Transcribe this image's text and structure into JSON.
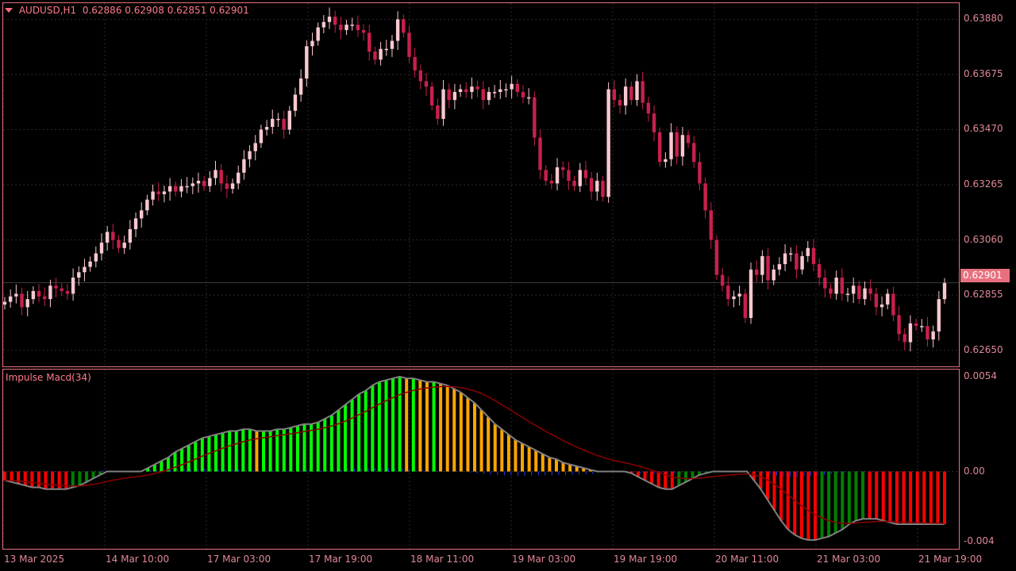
{
  "header": {
    "symbol_label": "AUDUSD,H1",
    "ohlc": "0.62886 0.62908 0.62851 0.62901"
  },
  "indicator": {
    "name": "Impulse Macd(34)"
  },
  "current_price": "0.62901",
  "price_axis": [
    "0.63880",
    "0.63675",
    "0.63470",
    "0.63265",
    "0.63060",
    "0.62855",
    "0.62650"
  ],
  "indicator_axis": [
    "0.0054",
    "0.00",
    "-0.004"
  ],
  "time_axis": [
    "13 Mar 2025",
    "14 Mar 10:00",
    "17 Mar 03:00",
    "17 Mar 19:00",
    "18 Mar 11:00",
    "19 Mar 03:00",
    "19 Mar 19:00",
    "20 Mar 11:00",
    "21 Mar 03:00",
    "21 Mar 19:00"
  ],
  "colors": {
    "background": "#000000",
    "frame": "#e8707e",
    "bull_candle": "#f8c8d0",
    "bear_candle": "#c8204c",
    "grid": "#2a2a2a",
    "impulse_green": "#00ff00",
    "impulse_dark_green": "#008000",
    "impulse_orange": "#ffa500",
    "impulse_red": "#ff0000",
    "signal_line": "#8b0000",
    "macd_line": "#808080",
    "blue_hist": "#1e3cff"
  },
  "chart_data": [
    {
      "type": "candlestick",
      "title": "AUDUSD,H1",
      "ylim": [
        0.6259,
        0.6394
      ],
      "x_labels": [
        "13 Mar 2025",
        "14 Mar 10:00",
        "17 Mar 03:00",
        "17 Mar 19:00",
        "18 Mar 11:00",
        "19 Mar 03:00",
        "19 Mar 19:00",
        "20 Mar 11:00",
        "21 Mar 03:00",
        "21 Mar 19:00"
      ],
      "close": [
        0.6283,
        0.6285,
        0.6286,
        0.6281,
        0.6284,
        0.6287,
        0.6285,
        0.6284,
        0.6289,
        0.6288,
        0.6287,
        0.6286,
        0.6292,
        0.6294,
        0.6296,
        0.6298,
        0.6301,
        0.6305,
        0.6309,
        0.6306,
        0.6303,
        0.6305,
        0.631,
        0.6314,
        0.6317,
        0.6321,
        0.6324,
        0.6323,
        0.6324,
        0.6326,
        0.6324,
        0.6326,
        0.6326,
        0.6327,
        0.6328,
        0.6326,
        0.6329,
        0.6332,
        0.6327,
        0.6325,
        0.6327,
        0.6331,
        0.6336,
        0.6339,
        0.6342,
        0.6347,
        0.6348,
        0.6351,
        0.6351,
        0.6347,
        0.6354,
        0.636,
        0.6366,
        0.6378,
        0.638,
        0.6385,
        0.6387,
        0.6389,
        0.6386,
        0.6384,
        0.6386,
        0.6386,
        0.6384,
        0.6383,
        0.6376,
        0.6373,
        0.6377,
        0.6377,
        0.638,
        0.6388,
        0.6383,
        0.6374,
        0.6369,
        0.6365,
        0.6363,
        0.6356,
        0.6351,
        0.6362,
        0.6358,
        0.6361,
        0.6362,
        0.6361,
        0.6363,
        0.6362,
        0.6358,
        0.6361,
        0.6361,
        0.6362,
        0.6362,
        0.6364,
        0.6361,
        0.6359,
        0.6359,
        0.6344,
        0.6332,
        0.6328,
        0.6327,
        0.6333,
        0.6332,
        0.6328,
        0.6326,
        0.6332,
        0.6329,
        0.6324,
        0.6328,
        0.6322,
        0.6362,
        0.6358,
        0.6356,
        0.6363,
        0.6358,
        0.6365,
        0.6357,
        0.6353,
        0.6346,
        0.6335,
        0.6336,
        0.6346,
        0.6337,
        0.6345,
        0.6342,
        0.6335,
        0.6327,
        0.6317,
        0.6306,
        0.6293,
        0.6289,
        0.6284,
        0.6285,
        0.6286,
        0.6277,
        0.6295,
        0.6293,
        0.63,
        0.6291,
        0.6295,
        0.6297,
        0.6301,
        0.6301,
        0.6295,
        0.63,
        0.6303,
        0.6297,
        0.6292,
        0.6288,
        0.6286,
        0.6292,
        0.6286,
        0.6286,
        0.6289,
        0.6284,
        0.6288,
        0.6286,
        0.6281,
        0.6282,
        0.6286,
        0.6278,
        0.6271,
        0.6268,
        0.6275,
        0.6274,
        0.6274,
        0.6269,
        0.6272,
        0.6284,
        0.629
      ],
      "open": [
        0.6282,
        0.6283,
        0.6285,
        0.6286,
        0.6281,
        0.6284,
        0.6287,
        0.6285,
        0.6284,
        0.6289,
        0.6288,
        0.6287,
        0.6286,
        0.6292,
        0.6294,
        0.6296,
        0.6298,
        0.6301,
        0.6305,
        0.6309,
        0.6306,
        0.6303,
        0.6305,
        0.631,
        0.6314,
        0.6317,
        0.6321,
        0.6324,
        0.6323,
        0.6324,
        0.6326,
        0.6324,
        0.6326,
        0.6326,
        0.6327,
        0.6328,
        0.6326,
        0.6329,
        0.6332,
        0.6327,
        0.6325,
        0.6327,
        0.6331,
        0.6336,
        0.6339,
        0.6342,
        0.6347,
        0.6348,
        0.6351,
        0.6351,
        0.6347,
        0.6354,
        0.636,
        0.6366,
        0.6378,
        0.638,
        0.6385,
        0.6387,
        0.6389,
        0.6386,
        0.6384,
        0.6386,
        0.6386,
        0.6384,
        0.6383,
        0.6376,
        0.6373,
        0.6377,
        0.6377,
        0.638,
        0.6388,
        0.6383,
        0.6374,
        0.6369,
        0.6365,
        0.6363,
        0.6356,
        0.6351,
        0.6362,
        0.6358,
        0.6361,
        0.6362,
        0.6361,
        0.6363,
        0.6362,
        0.6358,
        0.6361,
        0.6361,
        0.6362,
        0.6362,
        0.6364,
        0.6361,
        0.6359,
        0.6359,
        0.6344,
        0.6332,
        0.6328,
        0.6327,
        0.6333,
        0.6332,
        0.6328,
        0.6326,
        0.6332,
        0.6329,
        0.6324,
        0.6328,
        0.6322,
        0.6362,
        0.6358,
        0.6356,
        0.6363,
        0.6358,
        0.6365,
        0.6357,
        0.6353,
        0.6346,
        0.6335,
        0.6336,
        0.6346,
        0.6337,
        0.6345,
        0.6342,
        0.6335,
        0.6327,
        0.6317,
        0.6306,
        0.6293,
        0.6289,
        0.6284,
        0.6285,
        0.6286,
        0.6277,
        0.6295,
        0.6293,
        0.63,
        0.6291,
        0.6295,
        0.6297,
        0.6301,
        0.6301,
        0.6295,
        0.63,
        0.6303,
        0.6297,
        0.6292,
        0.6288,
        0.6286,
        0.6292,
        0.6286,
        0.6286,
        0.6289,
        0.6284,
        0.6288,
        0.6286,
        0.6281,
        0.6282,
        0.6286,
        0.6278,
        0.6271,
        0.6268,
        0.6275,
        0.6274,
        0.6274,
        0.6269,
        0.6272,
        0.6284
      ]
    },
    {
      "type": "bar",
      "title": "Impulse Macd(34)",
      "ylim": [
        -0.0044,
        0.0058
      ],
      "impulse": [
        -0.0005,
        -0.0006,
        -0.0007,
        -0.0008,
        -0.0009,
        -0.0009,
        -0.001,
        -0.001,
        -0.001,
        -0.001,
        -0.0009,
        -0.0008,
        -0.0006,
        -0.0004,
        -0.0002,
        0,
        0,
        0,
        0,
        0,
        0,
        0.0002,
        0.0004,
        0.0006,
        0.0008,
        0.0011,
        0.0013,
        0.0015,
        0.0017,
        0.0019,
        0.002,
        0.0021,
        0.0022,
        0.0023,
        0.0023,
        0.0024,
        0.0024,
        0.0023,
        0.0023,
        0.0023,
        0.0024,
        0.0024,
        0.0025,
        0.0026,
        0.0027,
        0.0027,
        0.0028,
        0.003,
        0.0032,
        0.0035,
        0.0038,
        0.0041,
        0.0044,
        0.0046,
        0.0049,
        0.0051,
        0.0052,
        0.0053,
        0.0054,
        0.0053,
        0.0053,
        0.0052,
        0.0051,
        0.0051,
        0.005,
        0.0049,
        0.0047,
        0.0045,
        0.0042,
        0.0039,
        0.0035,
        0.0031,
        0.0027,
        0.0024,
        0.0021,
        0.0018,
        0.0016,
        0.0014,
        0.0012,
        0.001,
        0.0008,
        0.0007,
        0.0005,
        0.0004,
        0.0003,
        0.0002,
        0.0001,
        0,
        0,
        0,
        0,
        0,
        -0.0001,
        -0.0003,
        -0.0005,
        -0.0007,
        -0.0009,
        -0.001,
        -0.001,
        -0.0008,
        -0.0006,
        -0.0004,
        -0.0002,
        -0.0001,
        0,
        0,
        0,
        0,
        0,
        0,
        -0.0005,
        -0.001,
        -0.0016,
        -0.0022,
        -0.0028,
        -0.0033,
        -0.0036,
        -0.0038,
        -0.0039,
        -0.0039,
        -0.0038,
        -0.0037,
        -0.0035,
        -0.0033,
        -0.003,
        -0.0028,
        -0.0027,
        -0.0027,
        -0.0027,
        -0.0028,
        -0.0029,
        -0.003,
        -0.003,
        -0.003,
        -0.003,
        -0.003,
        -0.003,
        -0.003,
        -0.003
      ]
    }
  ]
}
